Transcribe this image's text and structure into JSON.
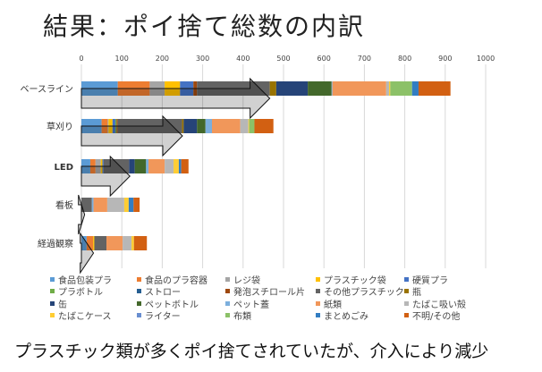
{
  "title": "結果：ポイ捨て総数の内訳",
  "caption": "プラスチック類が多くポイ捨てされていたが、介入により減少",
  "chart_data": {
    "type": "bar",
    "orientation": "horizontal",
    "stacked": true,
    "title": "",
    "xlim": [
      0,
      1000
    ],
    "xticks": [
      "0",
      "100",
      "200",
      "300",
      "400",
      "500",
      "600",
      "700",
      "800",
      "900",
      "1000"
    ],
    "grid": true,
    "legend_position": "bottom",
    "categories": [
      "ベースライン",
      "草刈り",
      "LED",
      "看板",
      "経過観察"
    ],
    "series": [
      {
        "name": "食品包装プラ",
        "color": "#5b9bd5",
        "values": [
          90,
          50,
          22,
          0,
          13
        ]
      },
      {
        "name": "食品のプラ容器",
        "color": "#ed7d31",
        "values": [
          79,
          15,
          13,
          0,
          16
        ]
      },
      {
        "name": "レジ袋",
        "color": "#a5a5a5",
        "values": [
          37,
          2,
          13,
          0,
          0
        ]
      },
      {
        "name": "プラスチック袋",
        "color": "#ffc000",
        "values": [
          38,
          10,
          4,
          0,
          3
        ]
      },
      {
        "name": "硬質プラ",
        "color": "#4472c4",
        "values": [
          33,
          7,
          3,
          0,
          0
        ]
      },
      {
        "name": "プラボトル",
        "color": "#70ad47",
        "values": [
          0,
          3,
          0,
          0,
          0
        ]
      },
      {
        "name": "ストロー",
        "color": "#255e91",
        "values": [
          0,
          0,
          0,
          0,
          0
        ]
      },
      {
        "name": "発泡スチロール片",
        "color": "#9e480e",
        "values": [
          9,
          3,
          0,
          0,
          0
        ]
      },
      {
        "name": "その他プラスチック",
        "color": "#636363",
        "values": [
          180,
          159,
          63,
          26,
          30
        ]
      },
      {
        "name": "瓶",
        "color": "#997300",
        "values": [
          16,
          4,
          0,
          0,
          0
        ]
      },
      {
        "name": "缶",
        "color": "#264478",
        "values": [
          78,
          33,
          14,
          0,
          0
        ]
      },
      {
        "name": "ペットボトル",
        "color": "#43682b",
        "values": [
          59,
          21,
          28,
          0,
          0
        ]
      },
      {
        "name": "ペット蓋",
        "color": "#7cafdd",
        "values": [
          2,
          16,
          6,
          4,
          0
        ]
      },
      {
        "name": "紙類",
        "color": "#f1975a",
        "values": [
          133,
          70,
          40,
          34,
          40
        ]
      },
      {
        "name": "たばこ吸い殻",
        "color": "#b7b7b7",
        "values": [
          7,
          20,
          22,
          42,
          22
        ]
      },
      {
        "name": "たばこケース",
        "color": "#ffcd33",
        "values": [
          3,
          2,
          13,
          11,
          6
        ]
      },
      {
        "name": "ライター",
        "color": "#698ed0",
        "values": [
          0,
          0,
          0,
          0,
          0
        ]
      },
      {
        "name": "布類",
        "color": "#8cc168",
        "values": [
          54,
          13,
          0,
          0,
          0
        ]
      },
      {
        "name": "まとめごみ",
        "color": "#327dc2",
        "values": [
          16,
          0,
          6,
          12,
          0
        ]
      },
      {
        "name": "不明/その他",
        "color": "#d26012",
        "values": [
          79,
          47,
          18,
          15,
          32
        ]
      }
    ]
  }
}
